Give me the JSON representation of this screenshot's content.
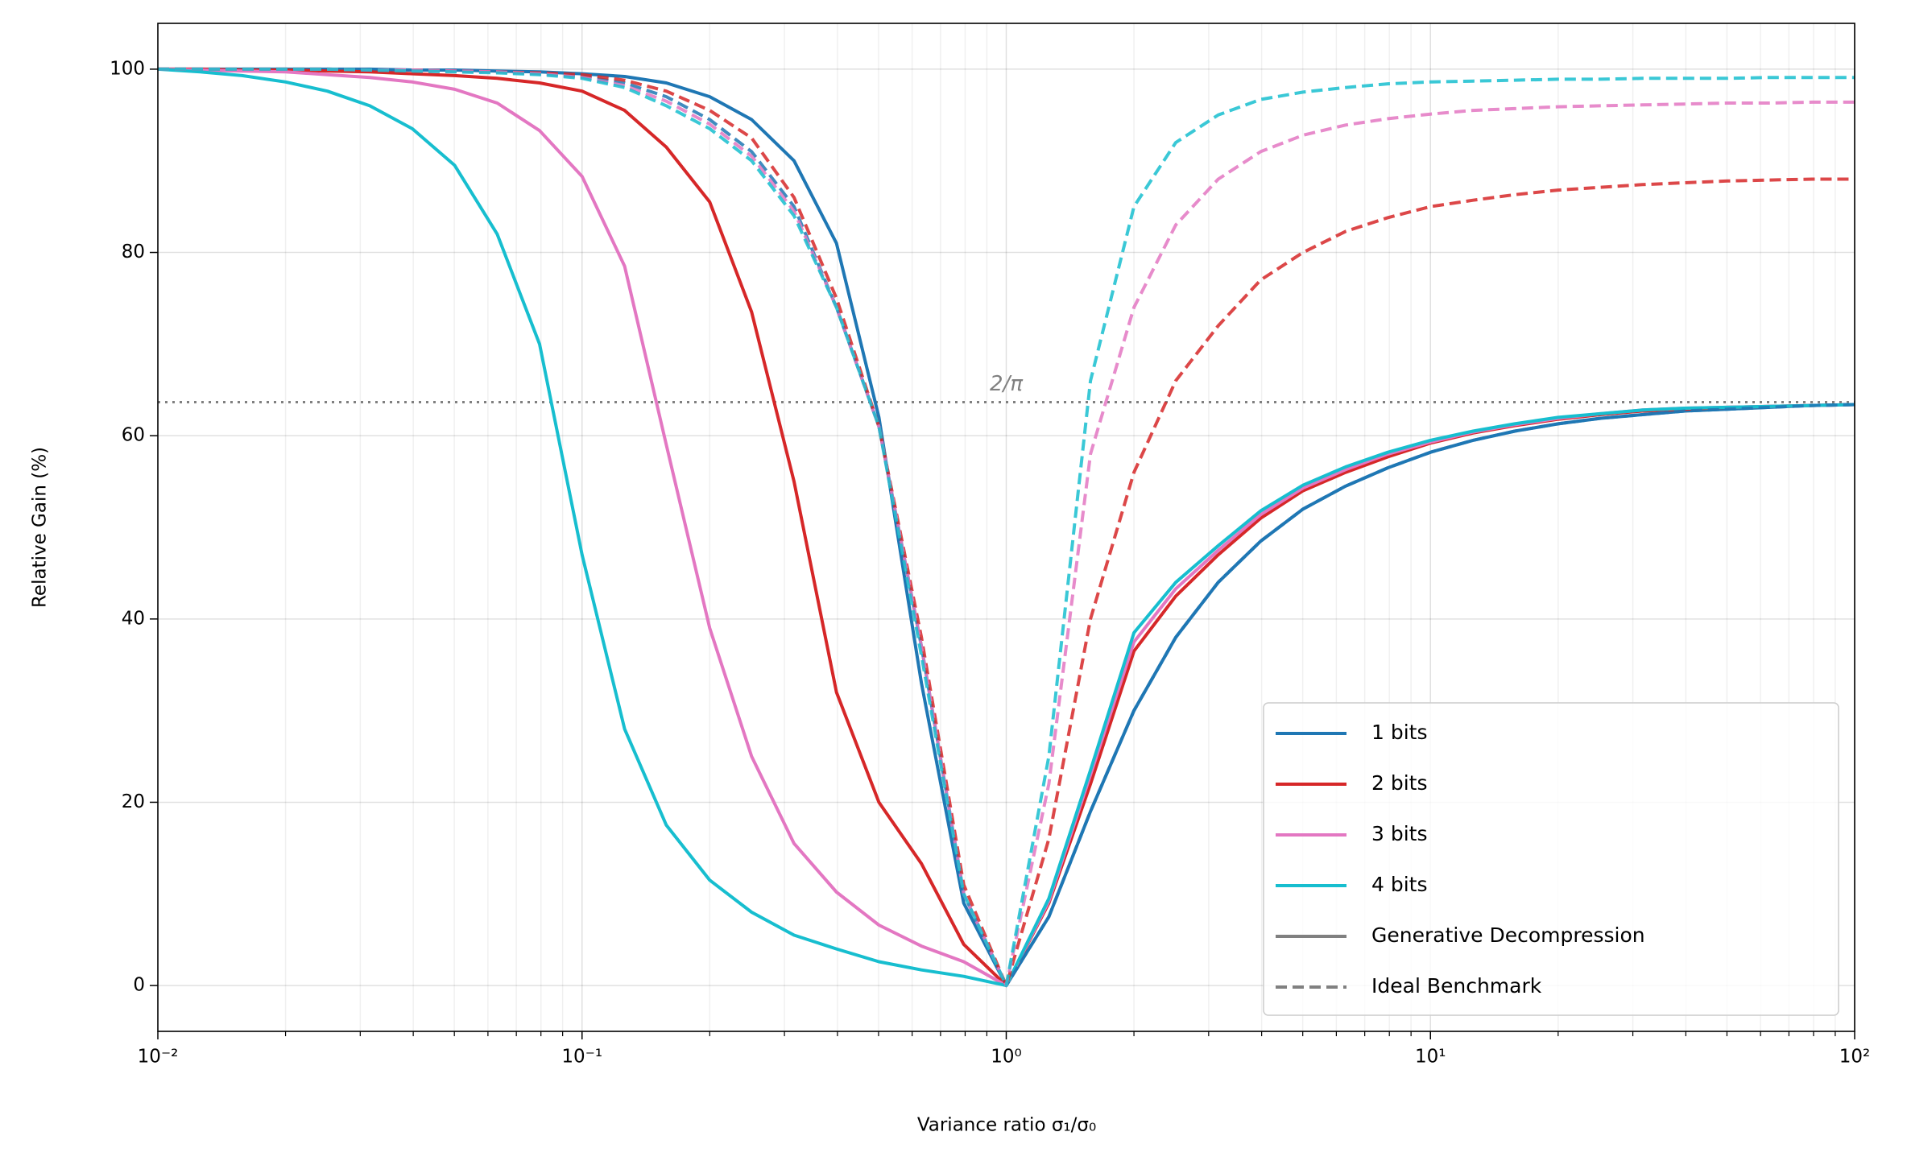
{
  "chart_data": {
    "type": "line",
    "xlabel": "Variance ratio σ₁/σ₀",
    "ylabel": "Relative Gain (%)",
    "xscale": "log",
    "xlim": [
      0.01,
      100
    ],
    "ylim": [
      -5,
      105
    ],
    "xticks": [
      {
        "value": 0.01,
        "label": "10⁻²"
      },
      {
        "value": 0.1,
        "label": "10⁻¹"
      },
      {
        "value": 1,
        "label": "10⁰"
      },
      {
        "value": 10,
        "label": "10¹"
      },
      {
        "value": 100,
        "label": "10²"
      }
    ],
    "xminorticks": [
      0.02,
      0.03,
      0.04,
      0.05,
      0.06,
      0.07,
      0.08,
      0.09,
      0.2,
      0.3,
      0.4,
      0.5,
      0.6,
      0.7,
      0.8,
      0.9,
      2,
      3,
      4,
      5,
      6,
      7,
      8,
      9,
      20,
      30,
      40,
      50,
      60,
      70,
      80,
      90
    ],
    "yticks": [
      0,
      20,
      40,
      60,
      80,
      100
    ],
    "grid": true,
    "legend": "lower right",
    "x": [
      0.01,
      0.0126,
      0.0158,
      0.02,
      0.0251,
      0.0316,
      0.0398,
      0.0501,
      0.0631,
      0.0794,
      0.1,
      0.126,
      0.158,
      0.2,
      0.251,
      0.316,
      0.398,
      0.501,
      0.631,
      0.794,
      1,
      1.26,
      1.58,
      2,
      2.51,
      3.16,
      3.98,
      5.01,
      6.31,
      7.94,
      10,
      12.6,
      15.8,
      20,
      25.1,
      31.6,
      39.8,
      50.1,
      63.1,
      79.4,
      100
    ],
    "series": [
      {
        "name": "1 bits",
        "color": "#1f77b4",
        "values": [
          100,
          100,
          100,
          100,
          100,
          100,
          99.9,
          99.9,
          99.8,
          99.7,
          99.5,
          99.2,
          98.5,
          97,
          94.5,
          90,
          81,
          62,
          33,
          9,
          0,
          7.5,
          19,
          30,
          38,
          44,
          48.5,
          52,
          54.5,
          56.5,
          58.2,
          59.5,
          60.5,
          61.3,
          61.9,
          62.3,
          62.7,
          62.9,
          63.1,
          63.3,
          63.4
        ],
        "benchmark_values": [
          100,
          100,
          100,
          100,
          100,
          99.9,
          99.9,
          99.8,
          99.7,
          99.5,
          99.2,
          98.5,
          97,
          94.5,
          91,
          85,
          74,
          61,
          37,
          10,
          0,
          7.5,
          19,
          30,
          38,
          44,
          48.5,
          52,
          54.5,
          56.5,
          58.2,
          59.5,
          60.5,
          61.3,
          61.9,
          62.3,
          62.7,
          62.9,
          63.1,
          63.3,
          63.4
        ]
      },
      {
        "name": "2 bits",
        "color": "#d62728",
        "values": [
          100,
          100,
          99.9,
          99.9,
          99.8,
          99.7,
          99.5,
          99.3,
          99,
          98.5,
          97.6,
          95.5,
          91.5,
          85.5,
          73.5,
          55,
          32,
          20,
          13.3,
          4.5,
          0,
          9,
          22,
          36.5,
          42.5,
          47,
          51,
          54,
          56,
          57.7,
          59.2,
          60.3,
          61.1,
          61.8,
          62.3,
          62.7,
          62.9,
          63.1,
          63.2,
          63.3,
          63.4
        ],
        "benchmark_values": [
          100,
          100,
          100,
          100,
          100,
          99.9,
          99.9,
          99.8,
          99.7,
          99.6,
          99.4,
          98.8,
          97.6,
          95.5,
          92.5,
          86,
          75,
          61,
          38,
          11,
          0,
          16,
          40,
          56,
          66,
          72,
          77,
          80,
          82.3,
          83.8,
          85,
          85.7,
          86.3,
          86.8,
          87.1,
          87.4,
          87.6,
          87.8,
          87.9,
          88,
          88
        ]
      },
      {
        "name": "3 bits",
        "color": "#e377c2",
        "values": [
          100,
          99.9,
          99.8,
          99.7,
          99.4,
          99.1,
          98.6,
          97.8,
          96.3,
          93.3,
          88.3,
          78.5,
          59,
          39,
          25,
          15.5,
          10.2,
          6.6,
          4.3,
          2.6,
          0,
          9.2,
          23,
          37.5,
          43.3,
          47.5,
          51.4,
          54.3,
          56.3,
          58,
          59.3,
          60.4,
          61.2,
          61.9,
          62.4,
          62.8,
          63,
          63.1,
          63.2,
          63.3,
          63.4
        ],
        "benchmark_values": [
          100,
          100,
          100,
          100,
          100,
          99.9,
          99.9,
          99.8,
          99.7,
          99.5,
          99.1,
          98.2,
          96.5,
          94,
          90.5,
          84.5,
          74,
          61,
          37,
          10,
          0,
          22,
          58,
          74,
          83,
          88,
          91,
          92.8,
          93.9,
          94.6,
          95.1,
          95.5,
          95.7,
          95.9,
          96,
          96.1,
          96.2,
          96.3,
          96.3,
          96.4,
          96.4
        ]
      },
      {
        "name": "4 bits",
        "color": "#17becf",
        "values": [
          100,
          99.7,
          99.3,
          98.6,
          97.6,
          96,
          93.5,
          89.5,
          82,
          70,
          47,
          28,
          17.5,
          11.5,
          8,
          5.5,
          4,
          2.6,
          1.7,
          1,
          0,
          9.5,
          23.5,
          38.5,
          44,
          48,
          51.8,
          54.6,
          56.6,
          58.2,
          59.5,
          60.5,
          61.3,
          62,
          62.4,
          62.8,
          63,
          63.1,
          63.2,
          63.3,
          63.4
        ],
        "benchmark_values": [
          100,
          100,
          100,
          100,
          100,
          99.9,
          99.8,
          99.7,
          99.6,
          99.4,
          99,
          98,
          96,
          93.5,
          90,
          84,
          74,
          61,
          36,
          10,
          0,
          25,
          66,
          85,
          92,
          95,
          96.7,
          97.5,
          98,
          98.4,
          98.6,
          98.7,
          98.8,
          98.9,
          98.9,
          99,
          99,
          99,
          99.1,
          99.1,
          99.1
        ]
      }
    ],
    "styles": [
      {
        "name": "Generative Decompression",
        "dash": "solid",
        "color": "#808080"
      },
      {
        "name": "Ideal Benchmark",
        "dash": "dashed",
        "color": "#808080"
      }
    ],
    "hline": {
      "value": 63.66,
      "label": "2/π",
      "color": "#808080"
    }
  }
}
